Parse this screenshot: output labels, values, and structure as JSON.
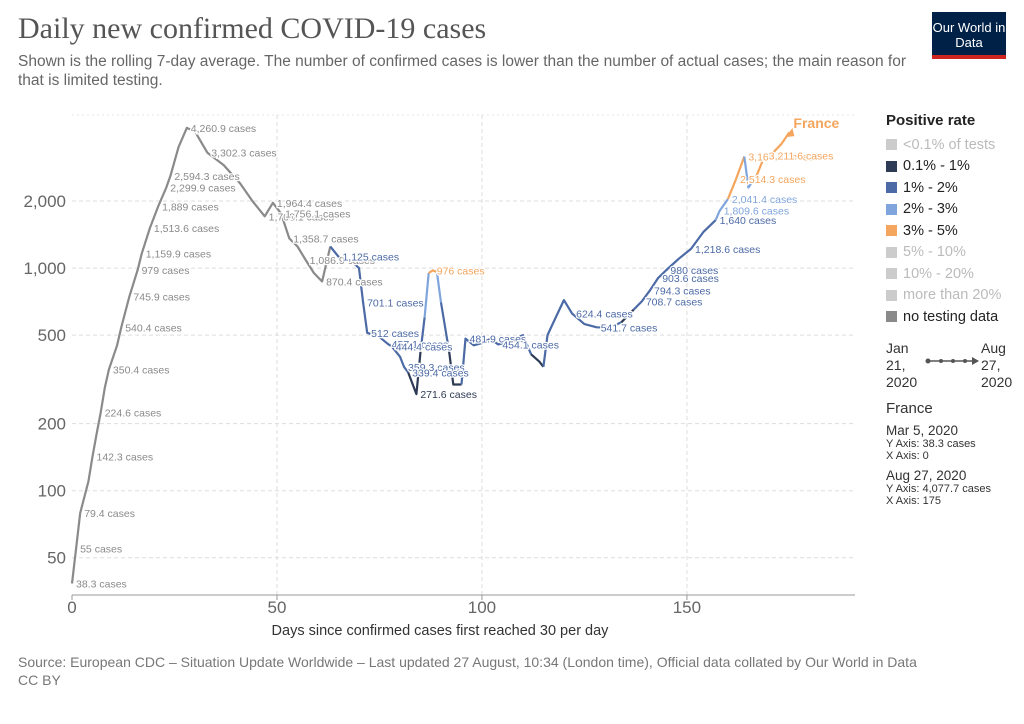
{
  "header": {
    "title": "Daily new confirmed COVID-19 cases",
    "subtitle": "Shown is the rolling 7-day average. The number of confirmed cases is lower than the number of actual cases; the main reason for that is limited testing.",
    "logo": "Our World in Data"
  },
  "chart_data": {
    "type": "line",
    "log_scale": true,
    "grid": true,
    "x_label": "Days since confirmed cases first reached 30 per day",
    "xlim": [
      0,
      191
    ],
    "xticks": [
      0,
      50,
      100,
      150
    ],
    "ylim": [
      34,
      4870
    ],
    "yticks": [
      50,
      100,
      200,
      500,
      {
        "value": 1000,
        "label": "1,000"
      },
      {
        "value": 2000,
        "label": "2,000"
      }
    ],
    "legend": {
      "title": "Positive rate",
      "items": [
        {
          "name": "<0.1% of tests",
          "color": "#cccccc",
          "active": false
        },
        {
          "name": "0.1% - 1%",
          "color": "#2e3b55",
          "active": true
        },
        {
          "name": "1% - 2%",
          "color": "#4c6aa6",
          "active": true
        },
        {
          "name": "2% - 3%",
          "color": "#80a5dc",
          "active": true
        },
        {
          "name": "3% - 5%",
          "color": "#f4a55e",
          "active": true
        },
        {
          "name": "5% - 10%",
          "color": "#cccccc",
          "active": false
        },
        {
          "name": "10% - 20%",
          "color": "#cccccc",
          "active": false
        },
        {
          "name": "more than 20%",
          "color": "#cccccc",
          "active": false
        },
        {
          "name": "no testing data",
          "color": "#8a8a8a",
          "active": true
        }
      ]
    },
    "series": [
      {
        "name": "France",
        "color": "#f4a55e",
        "x": [
          0,
          1,
          2,
          4,
          5,
          6,
          7,
          8,
          9,
          11,
          12,
          14,
          16,
          17,
          19,
          21,
          23,
          24,
          26,
          28,
          30,
          33,
          37,
          41,
          44,
          47,
          49,
          51,
          53,
          55,
          57,
          59,
          61,
          63,
          65,
          68,
          70,
          71,
          72,
          75,
          77,
          78,
          80,
          81,
          82,
          84,
          85,
          86,
          87,
          88,
          89,
          90,
          92,
          93,
          95,
          96,
          98,
          100,
          102,
          104,
          107,
          110,
          112,
          114,
          115,
          116,
          118,
          120,
          122,
          125,
          128,
          131,
          134,
          137,
          139,
          141,
          143,
          145,
          148,
          151,
          154,
          157,
          158,
          160,
          162,
          164,
          165,
          167,
          169,
          171,
          173,
          175
        ],
        "values": [
          38.3,
          55,
          79.4,
          110,
          142.3,
          180,
          224.6,
          290,
          350.4,
          450,
          540.4,
          745.9,
          979,
          1159.9,
          1513.6,
          1889,
          2299.9,
          2594.3,
          3500,
          4260.9,
          4100,
          3302.3,
          2900,
          2400,
          2000,
          1708.1,
          1964.4,
          1756.1,
          1358.7,
          1250,
          1086.9,
          950,
          870.4,
          1250,
          1125,
          1080,
          1000,
          701.1,
          512,
          490,
          457.1,
          444.4,
          400,
          359.3,
          339.4,
          271.6,
          420,
          600,
          950,
          976,
          960,
          700,
          420,
          300,
          300,
          481.9,
          450,
          460,
          480,
          454.1,
          470,
          500,
          410,
          380,
          360,
          500,
          600,
          718,
          624.4,
          560,
          541.7,
          540,
          570,
          650,
          708.7,
          794.3,
          903.6,
          980,
          1100,
          1218.6,
          1450,
          1640,
          1809.6,
          2041.4,
          2514.3,
          3169.9,
          2300,
          2600,
          3211.6,
          3300,
          3600,
          4077.7
        ],
        "value_labels": [
          "38.3 cases",
          "55 cases",
          "79.4 cases",
          null,
          "142.3 cases",
          null,
          "224.6 cases",
          null,
          "350.4 cases",
          null,
          "540.4 cases",
          "745.9 cases",
          "979 cases",
          "1,159.9 cases",
          "1,513.6 cases",
          "1,889 cases",
          "2,299.9 cases",
          "2,594.3 cases",
          null,
          "4,260.9 cases",
          null,
          "3,302.3 cases",
          null,
          null,
          null,
          "1,708.1 cases",
          "1,964.4 cases",
          "1,756.1 cases",
          "1,358.7 cases",
          null,
          "1,086.9 cases",
          null,
          "870.4 cases",
          null,
          "1,125 cases",
          null,
          null,
          "701.1 cases",
          "512 cases",
          null,
          "457.1 cases",
          "444.4 cases",
          null,
          "359.3 cases",
          "339.4 cases",
          "271.6 cases",
          null,
          null,
          null,
          "976 cases",
          null,
          null,
          null,
          null,
          null,
          "481.9 cases",
          null,
          null,
          null,
          "454.1 cases",
          null,
          null,
          null,
          null,
          null,
          null,
          null,
          null,
          "624.4 cases",
          null,
          "541.7 cases",
          null,
          null,
          null,
          "708.7 cases",
          "794.3 cases",
          "903.6 cases",
          "980 cases",
          null,
          "1,218.6 cases",
          null,
          "1,640 cases",
          "1,809.6 cases",
          "2,041.4 cases",
          "2,514.3 cases",
          "3,169.9 cases",
          null,
          null,
          "3,211.6 cases",
          null,
          null,
          null
        ],
        "colors": [
          "#8a8a8a",
          "#8a8a8a",
          "#8a8a8a",
          "#8a8a8a",
          "#8a8a8a",
          "#8a8a8a",
          "#8a8a8a",
          "#8a8a8a",
          "#8a8a8a",
          "#8a8a8a",
          "#8a8a8a",
          "#8a8a8a",
          "#8a8a8a",
          "#8a8a8a",
          "#8a8a8a",
          "#8a8a8a",
          "#8a8a8a",
          "#8a8a8a",
          "#8a8a8a",
          "#8a8a8a",
          "#8a8a8a",
          "#8a8a8a",
          "#8a8a8a",
          "#8a8a8a",
          "#8a8a8a",
          "#8a8a8a",
          "#8a8a8a",
          "#8a8a8a",
          "#8a8a8a",
          "#8a8a8a",
          "#8a8a8a",
          "#8a8a8a",
          "#8a8a8a",
          "#8a8a8a",
          "#4c6aa6",
          "#4c6aa6",
          "#4c6aa6",
          "#4c6aa6",
          "#4c6aa6",
          "#4c6aa6",
          "#4c6aa6",
          "#4c6aa6",
          "#4c6aa6",
          "#4c6aa6",
          "#4c6aa6",
          "#2e3b55",
          "#2e3b55",
          "#4c6aa6",
          "#80a5dc",
          "#f4a55e",
          "#f4a55e",
          "#80a5dc",
          "#4c6aa6",
          "#2e3b55",
          "#2e3b55",
          "#4c6aa6",
          "#4c6aa6",
          "#4c6aa6",
          "#4c6aa6",
          "#4c6aa6",
          "#4c6aa6",
          "#4c6aa6",
          "#4c6aa6",
          "#2e3b55",
          "#2e3b55",
          "#4c6aa6",
          "#4c6aa6",
          "#4c6aa6",
          "#4c6aa6",
          "#4c6aa6",
          "#4c6aa6",
          "#4c6aa6",
          "#4c6aa6",
          "#2e3b55",
          "#4c6aa6",
          "#4c6aa6",
          "#4c6aa6",
          "#4c6aa6",
          "#4c6aa6",
          "#4c6aa6",
          "#4c6aa6",
          "#4c6aa6",
          "#80a5dc",
          "#80a5dc",
          "#f4a55e",
          "#f4a55e",
          "#80a5dc",
          "#80a5dc",
          "#f4a55e",
          "#f4a55e",
          "#f4a55e",
          "#f4a55e"
        ]
      }
    ]
  },
  "timeline": {
    "start": "Jan 21, 2020",
    "end": "Aug 27, 2020"
  },
  "tooltip": {
    "country": "France",
    "first": {
      "date": "Mar 5, 2020",
      "y": "Y Axis: 38.3 cases",
      "x": "X Axis: 0"
    },
    "last": {
      "date": "Aug 27, 2020",
      "y": "Y Axis: 4,077.7 cases",
      "x": "X Axis: 175"
    }
  },
  "footer": {
    "source": "Source: European CDC – Situation Update Worldwide – Last updated 27 August, 10:34 (London time), Official data collated by Our World in Data",
    "license": "CC BY"
  }
}
